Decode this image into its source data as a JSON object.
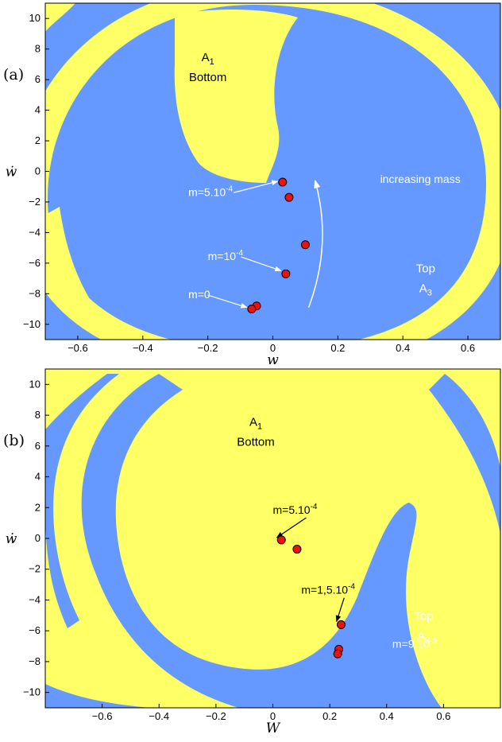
{
  "colors": {
    "basin_blue": "#6699ff",
    "basin_yellow": "#ffff66",
    "marker": "#ee1111",
    "annotation_white": "#ffffff",
    "annotation_black": "#000000"
  },
  "chart_data": [
    {
      "type": "scatter",
      "panel_label": "(a)",
      "xlabel": "w",
      "ylabel": "ẇ",
      "xlim": [
        -0.7,
        0.7
      ],
      "ylim": [
        -11,
        11
      ],
      "xticks": [
        "-0.6",
        "-0.4",
        "-0.2",
        "0",
        "0.2",
        "0.4",
        "0.6"
      ],
      "xtick_values": [
        -0.6,
        -0.4,
        -0.2,
        0,
        0.2,
        0.4,
        0.6
      ],
      "yticks": [
        "10",
        "8",
        "6",
        "4",
        "2",
        "0",
        "-2",
        "-4",
        "-6",
        "-8",
        "-10"
      ],
      "ytick_values": [
        10,
        8,
        6,
        4,
        2,
        0,
        -2,
        -4,
        -6,
        -8,
        -10
      ],
      "background": "basin of attraction map: blue = Top A3, yellow = Bottom A1",
      "regions": [
        {
          "name": "A1",
          "sub": "1",
          "label2": "Bottom",
          "color": "black",
          "x": -0.2,
          "y": 7.2
        },
        {
          "name": "Top",
          "label2": "A3",
          "sub": "3",
          "color": "white",
          "x": 0.47,
          "y": -6.6
        }
      ],
      "points": [
        {
          "x": 0.03,
          "y": -0.7
        },
        {
          "x": 0.05,
          "y": -1.7
        },
        {
          "x": 0.1,
          "y": -4.8
        },
        {
          "x": 0.04,
          "y": -6.7
        },
        {
          "x": -0.05,
          "y": -8.8
        },
        {
          "x": -0.065,
          "y": -9.0
        }
      ],
      "annotations": [
        {
          "base": "m=5.10",
          "exp": "-4",
          "color": "white",
          "x": -0.26,
          "y": -1.6,
          "target": [
            0.025,
            -0.75
          ]
        },
        {
          "base": "m=10",
          "exp": "-4",
          "color": "white",
          "x": -0.2,
          "y": -5.8,
          "target": [
            0.035,
            -6.6
          ]
        },
        {
          "base": "m=0",
          "exp": "",
          "color": "white",
          "x": -0.26,
          "y": -8.3,
          "target": [
            -0.07,
            -9.0
          ]
        },
        {
          "base": "increasing mass",
          "exp": "",
          "color": "white",
          "x": 0.33,
          "y": -0.75
        }
      ],
      "mass_arrow": {
        "from": [
          0.11,
          -8.9
        ],
        "to": [
          0.13,
          -0.6
        ]
      }
    },
    {
      "type": "scatter",
      "panel_label": "(b)",
      "xlabel": "W",
      "ylabel": "ẇ",
      "xlim": [
        -0.8,
        0.8
      ],
      "ylim": [
        -11,
        11
      ],
      "xticks": [
        "-0.6",
        "-0.4",
        "-0.2",
        "0",
        "0.2",
        "0.4",
        "0.6"
      ],
      "xtick_values": [
        -0.6,
        -0.4,
        -0.2,
        0,
        0.2,
        0.4,
        0.6
      ],
      "yticks": [
        "10",
        "8",
        "6",
        "4",
        "2",
        "0",
        "-2",
        "-4",
        "-6",
        "-8",
        "-10"
      ],
      "ytick_values": [
        10,
        8,
        6,
        4,
        2,
        0,
        -2,
        -4,
        -6,
        -8,
        -10
      ],
      "background": "basin of attraction map: yellow = Bottom A1, blue = Top A3",
      "regions": [
        {
          "name": "A1",
          "sub": "1",
          "label2": "Bottom",
          "color": "black",
          "x": -0.06,
          "y": 7.3
        },
        {
          "name": "Top",
          "label2": "A3",
          "sub": "3",
          "color": "white",
          "x": 0.53,
          "y": -5.3
        }
      ],
      "points": [
        {
          "x": 0.03,
          "y": -0.1
        },
        {
          "x": 0.085,
          "y": -0.7
        },
        {
          "x": 0.24,
          "y": -5.6
        },
        {
          "x": 0.232,
          "y": -7.2
        },
        {
          "x": 0.228,
          "y": -7.5
        }
      ],
      "annotations": [
        {
          "base": "m=5.10",
          "exp": "-4",
          "color": "black",
          "x": 0.0,
          "y": 1.6,
          "target": [
            0.025,
            -0.05
          ]
        },
        {
          "base": "m=1,5.10",
          "exp": "-4",
          "color": "black",
          "x": 0.1,
          "y": -3.6,
          "target": [
            0.235,
            -5.5
          ]
        },
        {
          "base": "m=9.10",
          "exp": "-5",
          "color": "white",
          "x": 0.42,
          "y": -7.1
        }
      ]
    }
  ]
}
